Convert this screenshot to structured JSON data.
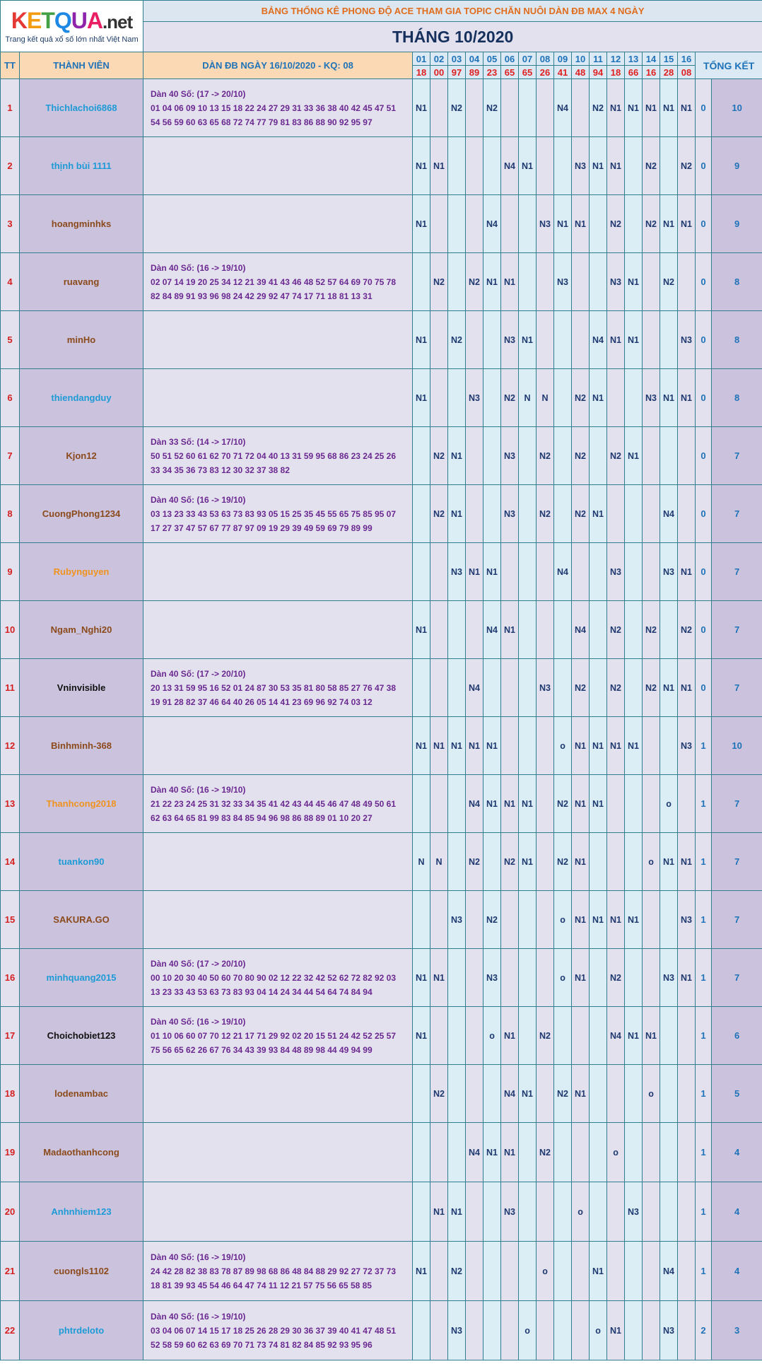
{
  "logo": {
    "letters": [
      {
        "ch": "K",
        "color": "#e53935"
      },
      {
        "ch": "E",
        "color": "#f39c12"
      },
      {
        "ch": "T",
        "color": "#43a047"
      },
      {
        "ch": "Q",
        "color": "#1e88e5"
      },
      {
        "ch": "U",
        "color": "#8e24aa"
      },
      {
        "ch": "A",
        "color": "#e91e63"
      }
    ],
    "suffix": ".net",
    "tagline": "Trang kết quả xổ số lớn nhất Việt Nam"
  },
  "banner": "BẢNG THỐNG KÊ PHONG ĐỘ ACE THAM GIA TOPIC CHĂN NUÔI DÀN ĐB MAX 4 NGÀY",
  "month": "THÁNG 10/2020",
  "headers": {
    "tt": "TT",
    "member": "THÀNH VIÊN",
    "dan": "DÀN ĐB NGÀY 16/10/2020 - KQ: 08",
    "total": "TỔNG KẾT"
  },
  "days": [
    "01",
    "02",
    "03",
    "04",
    "05",
    "06",
    "07",
    "08",
    "09",
    "10",
    "11",
    "12",
    "13",
    "14",
    "15",
    "16"
  ],
  "results": [
    "18",
    "00",
    "97",
    "89",
    "23",
    "65",
    "65",
    "26",
    "41",
    "48",
    "94",
    "18",
    "66",
    "16",
    "28",
    "08"
  ],
  "rows": [
    {
      "tt": "1",
      "name": "Thichlachoi6868",
      "color": "blue",
      "dan": [
        "Dàn 40 Số: (17 -> 20/10)",
        "01 04 06 09 10 13 15 18 22 24 27 29 31 33 36 38 40 42 45 47 51",
        "54 56 59 60 63 65 68 72 74 77 79 81 83 86 88 90 92 95 97"
      ],
      "marks": [
        "N1",
        "",
        "N2",
        "",
        "N2",
        "",
        "",
        "",
        "N4",
        "",
        "N2",
        "N1",
        "N1",
        "N1",
        "N1",
        "N1"
      ],
      "miss": "0",
      "total": "10"
    },
    {
      "tt": "2",
      "name": "thịnh bùi 1111",
      "color": "blue",
      "dan": [],
      "marks": [
        "N1",
        "N1",
        "",
        "",
        "",
        "N4",
        "N1",
        "",
        "",
        "N3",
        "N1",
        "N1",
        "",
        "N2",
        "",
        "N2"
      ],
      "miss": "0",
      "total": "9"
    },
    {
      "tt": "3",
      "name": "hoangminhks",
      "color": "brown",
      "dan": [],
      "marks": [
        "N1",
        "",
        "",
        "",
        "N4",
        "",
        "",
        "N3",
        "N1",
        "N1",
        "",
        "N2",
        "",
        "N2",
        "N1",
        "N1"
      ],
      "miss": "0",
      "total": "9"
    },
    {
      "tt": "4",
      "name": "ruavang",
      "color": "brown",
      "dan": [
        "Dàn 40 Số: (16 -> 19/10)",
        "02 07 14 19 20 25 34 12 21 39 41 43 46 48 52 57 64 69 70 75 78",
        "82 84 89 91 93 96 98 24 42 29 92 47 74 17 71 18 81 13 31"
      ],
      "marks": [
        "",
        "N2",
        "",
        "N2",
        "N1",
        "N1",
        "",
        "",
        "N3",
        "",
        "",
        "N3",
        "N1",
        "",
        "N2",
        ""
      ],
      "miss": "0",
      "total": "8"
    },
    {
      "tt": "5",
      "name": "minHo",
      "color": "brown",
      "dan": [],
      "marks": [
        "N1",
        "",
        "N2",
        "",
        "",
        "N3",
        "N1",
        "",
        "",
        "",
        "N4",
        "N1",
        "N1",
        "",
        "",
        "N3"
      ],
      "miss": "0",
      "total": "8"
    },
    {
      "tt": "6",
      "name": "thiendangduy",
      "color": "blue",
      "dan": [],
      "marks": [
        "N1",
        "",
        "",
        "N3",
        "",
        "N2",
        "N",
        "N",
        "",
        "N2",
        "N1",
        "",
        "",
        "N3",
        "N1",
        "N1"
      ],
      "miss": "0",
      "total": "8"
    },
    {
      "tt": "7",
      "name": "Kjon12",
      "color": "brown",
      "dan": [
        "Dàn 33 Số: (14 -> 17/10)",
        "50 51 52 60 61 62 70 71 72 04 40 13 31 59 95 68 86 23 24 25 26",
        "33 34 35 36 73 83 12 30 32 37 38 82"
      ],
      "marks": [
        "",
        "N2",
        "N1",
        "",
        "",
        "N3",
        "",
        "N2",
        "",
        "N2",
        "",
        "N2",
        "N1",
        "",
        "",
        ""
      ],
      "miss": "0",
      "total": "7"
    },
    {
      "tt": "8",
      "name": "CuongPhong1234",
      "color": "brown",
      "dan": [
        "Dàn 40 Số: (16 -> 19/10)",
        "03 13 23 33 43 53 63 73 83 93 05 15 25 35 45 55 65 75 85 95 07",
        "17 27 37 47 57 67 77 87 97 09 19 29 39 49 59 69 79 89 99"
      ],
      "marks": [
        "",
        "N2",
        "N1",
        "",
        "",
        "N3",
        "",
        "N2",
        "",
        "N2",
        "N1",
        "",
        "",
        "",
        "N4",
        ""
      ],
      "miss": "0",
      "total": "7"
    },
    {
      "tt": "9",
      "name": "Rubynguyen",
      "color": "orange",
      "dan": [],
      "marks": [
        "",
        "",
        "N3",
        "N1",
        "N1",
        "",
        "",
        "",
        "N4",
        "",
        "",
        "N3",
        "",
        "",
        "N3",
        "N1"
      ],
      "miss": "0",
      "total": "7"
    },
    {
      "tt": "10",
      "name": "Ngam_Nghi20",
      "color": "brown",
      "dan": [],
      "marks": [
        "N1",
        "",
        "",
        "",
        "N4",
        "N1",
        "",
        "",
        "",
        "N4",
        "",
        "N2",
        "",
        "N2",
        "",
        "N2"
      ],
      "miss": "0",
      "total": "7"
    },
    {
      "tt": "11",
      "name": "Vninvisible",
      "color": "black",
      "dan": [
        "Dàn 40 Số: (17 -> 20/10)",
        "20 13 31 59 95 16 52 01 24 87 30 53 35 81 80 58 85 27 76 47 38",
        "19 91 28 82 37 46 64 40 26 05 14 41 23 69 96 92 74 03 12"
      ],
      "marks": [
        "",
        "",
        "",
        "N4",
        "",
        "",
        "",
        "N3",
        "",
        "N2",
        "",
        "N2",
        "",
        "N2",
        "N1",
        "N1"
      ],
      "miss": "0",
      "total": "7"
    },
    {
      "tt": "12",
      "name": "Binhminh-368",
      "color": "brown",
      "dan": [],
      "marks": [
        "N1",
        "N1",
        "N1",
        "N1",
        "N1",
        "",
        "",
        "",
        "o",
        "N1",
        "N1",
        "N1",
        "N1",
        "",
        "",
        "N3"
      ],
      "miss": "1",
      "total": "10"
    },
    {
      "tt": "13",
      "name": "Thanhcong2018",
      "color": "orange",
      "dan": [
        "Dàn 40 Số: (16 -> 19/10)",
        "21 22 23 24 25 31 32 33 34 35 41 42 43 44 45 46 47 48 49 50 61",
        "62 63 64 65 81 99 83 84 85 94 96 98 86 88 89 01 10 20 27"
      ],
      "marks": [
        "",
        "",
        "",
        "N4",
        "N1",
        "N1",
        "N1",
        "",
        "N2",
        "N1",
        "N1",
        "",
        "",
        "",
        "o",
        ""
      ],
      "miss": "1",
      "total": "7"
    },
    {
      "tt": "14",
      "name": "tuankon90",
      "color": "blue",
      "dan": [],
      "marks": [
        "N",
        "N",
        "",
        "N2",
        "",
        "N2",
        "N1",
        "",
        "N2",
        "N1",
        "",
        "",
        "",
        "o",
        "N1",
        "N1"
      ],
      "miss": "1",
      "total": "7"
    },
    {
      "tt": "15",
      "name": "SAKURA.GO",
      "color": "brown",
      "dan": [],
      "marks": [
        "",
        "",
        "N3",
        "",
        "N2",
        "",
        "",
        "",
        "o",
        "N1",
        "N1",
        "N1",
        "N1",
        "",
        "",
        "N3"
      ],
      "miss": "1",
      "total": "7"
    },
    {
      "tt": "16",
      "name": "minhquang2015",
      "color": "blue",
      "dan": [
        "Dàn 40 Số: (17 -> 20/10)",
        "00 10 20 30 40 50 60 70 80 90 02 12 22 32 42 52 62 72 82 92 03",
        "13 23 33 43 53 63 73 83 93 04 14 24 34 44 54 64 74 84 94"
      ],
      "marks": [
        "N1",
        "N1",
        "",
        "",
        "N3",
        "",
        "",
        "",
        "o",
        "N1",
        "",
        "N2",
        "",
        "",
        "N3",
        "N1"
      ],
      "miss": "1",
      "total": "7"
    },
    {
      "tt": "17",
      "name": "Choichobiet123",
      "color": "black",
      "dan": [
        "Dàn 40 Số: (16 -> 19/10)",
        "01 10 06 60 07 70 12 21 17 71 29 92 02 20 15 51 24 42 52 25 57",
        "75 56 65 62 26 67 76 34 43 39 93 84 48 89 98 44 49 94 99"
      ],
      "marks": [
        "N1",
        "",
        "",
        "",
        "o",
        "N1",
        "",
        "N2",
        "",
        "",
        "",
        "N4",
        "N1",
        "N1",
        "",
        ""
      ],
      "miss": "1",
      "total": "6"
    },
    {
      "tt": "18",
      "name": "lodenambac",
      "color": "brown",
      "dan": [],
      "marks": [
        "",
        "N2",
        "",
        "",
        "",
        "N4",
        "N1",
        "",
        "N2",
        "N1",
        "",
        "",
        "",
        "o",
        "",
        ""
      ],
      "miss": "1",
      "total": "5"
    },
    {
      "tt": "19",
      "name": "Madaothanhcong",
      "color": "brown",
      "dan": [],
      "marks": [
        "",
        "",
        "",
        "N4",
        "N1",
        "N1",
        "",
        "N2",
        "",
        "",
        "",
        "o",
        "",
        "",
        "",
        ""
      ],
      "miss": "1",
      "total": "4"
    },
    {
      "tt": "20",
      "name": "Anhnhiem123",
      "color": "blue",
      "dan": [],
      "marks": [
        "",
        "N1",
        "N1",
        "",
        "",
        "N3",
        "",
        "",
        "",
        "o",
        "",
        "",
        "N3",
        "",
        "",
        ""
      ],
      "miss": "1",
      "total": "4"
    },
    {
      "tt": "21",
      "name": "cuongls1102",
      "color": "brown",
      "dan": [
        "Dàn 40 Số: (16 -> 19/10)",
        "24 42 28 82 38 83 78 87 89 98 68 86 48 84 88 29 92 27 72 37 73",
        "18 81 39 93 45 54 46 64 47 74 11 12 21 57 75 56 65 58 85"
      ],
      "marks": [
        "N1",
        "",
        "N2",
        "",
        "",
        "",
        "",
        "o",
        "",
        "",
        "N1",
        "",
        "",
        "",
        "N4",
        ""
      ],
      "miss": "1",
      "total": "4"
    },
    {
      "tt": "22",
      "name": "phtrdeloto",
      "color": "blue",
      "dan": [
        "Dàn 40 Số: (16 -> 19/10)",
        "03 04 06 07 14 15 17 18 25 26 28 29 30 36 37 39 40 41 47 48 51",
        "52 58 59 60 62 63 69 70 71 73 74 81 82 84 85 92 93 95 96"
      ],
      "marks": [
        "",
        "",
        "N3",
        "",
        "",
        "",
        "o",
        "",
        "",
        "",
        "o",
        "N1",
        "",
        "",
        "N3",
        ""
      ],
      "miss": "2",
      "total": "3"
    }
  ]
}
